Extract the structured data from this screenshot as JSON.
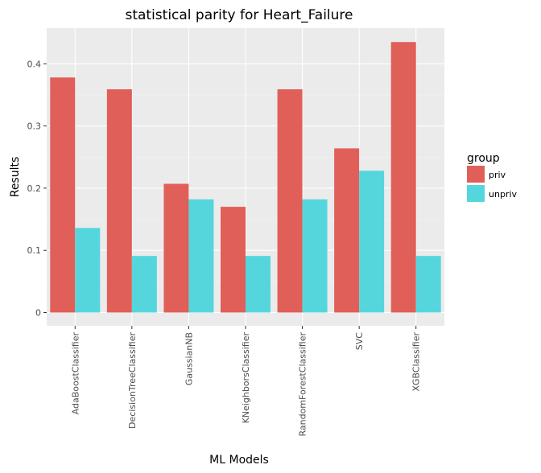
{
  "chart_data": {
    "type": "bar",
    "title": "statistical parity for Heart_Failure",
    "xlabel": "ML Models",
    "ylabel": "Results",
    "categories": [
      "AdaBoostClassifier",
      "DecisionTreeClassifier",
      "GaussianNB",
      "KNeighborsClassifier",
      "RandomForestClassifier",
      "SVC",
      "XGBClassifier"
    ],
    "series": [
      {
        "name": "priv",
        "color": "#E05F58",
        "values": [
          0.378,
          0.359,
          0.207,
          0.17,
          0.359,
          0.264,
          0.435
        ]
      },
      {
        "name": "unpriv",
        "color": "#55D6DD",
        "values": [
          0.136,
          0.091,
          0.182,
          0.091,
          0.182,
          0.228,
          0.091
        ]
      }
    ],
    "ylim": [
      0,
      0.45
    ],
    "yticks": [
      0,
      0.1,
      0.2,
      0.3,
      0.4
    ],
    "ytick_labels": [
      "0",
      "0.1",
      "0.2",
      "0.3",
      "0.4"
    ],
    "grid": true,
    "legend": {
      "title": "group",
      "position": "right"
    }
  }
}
